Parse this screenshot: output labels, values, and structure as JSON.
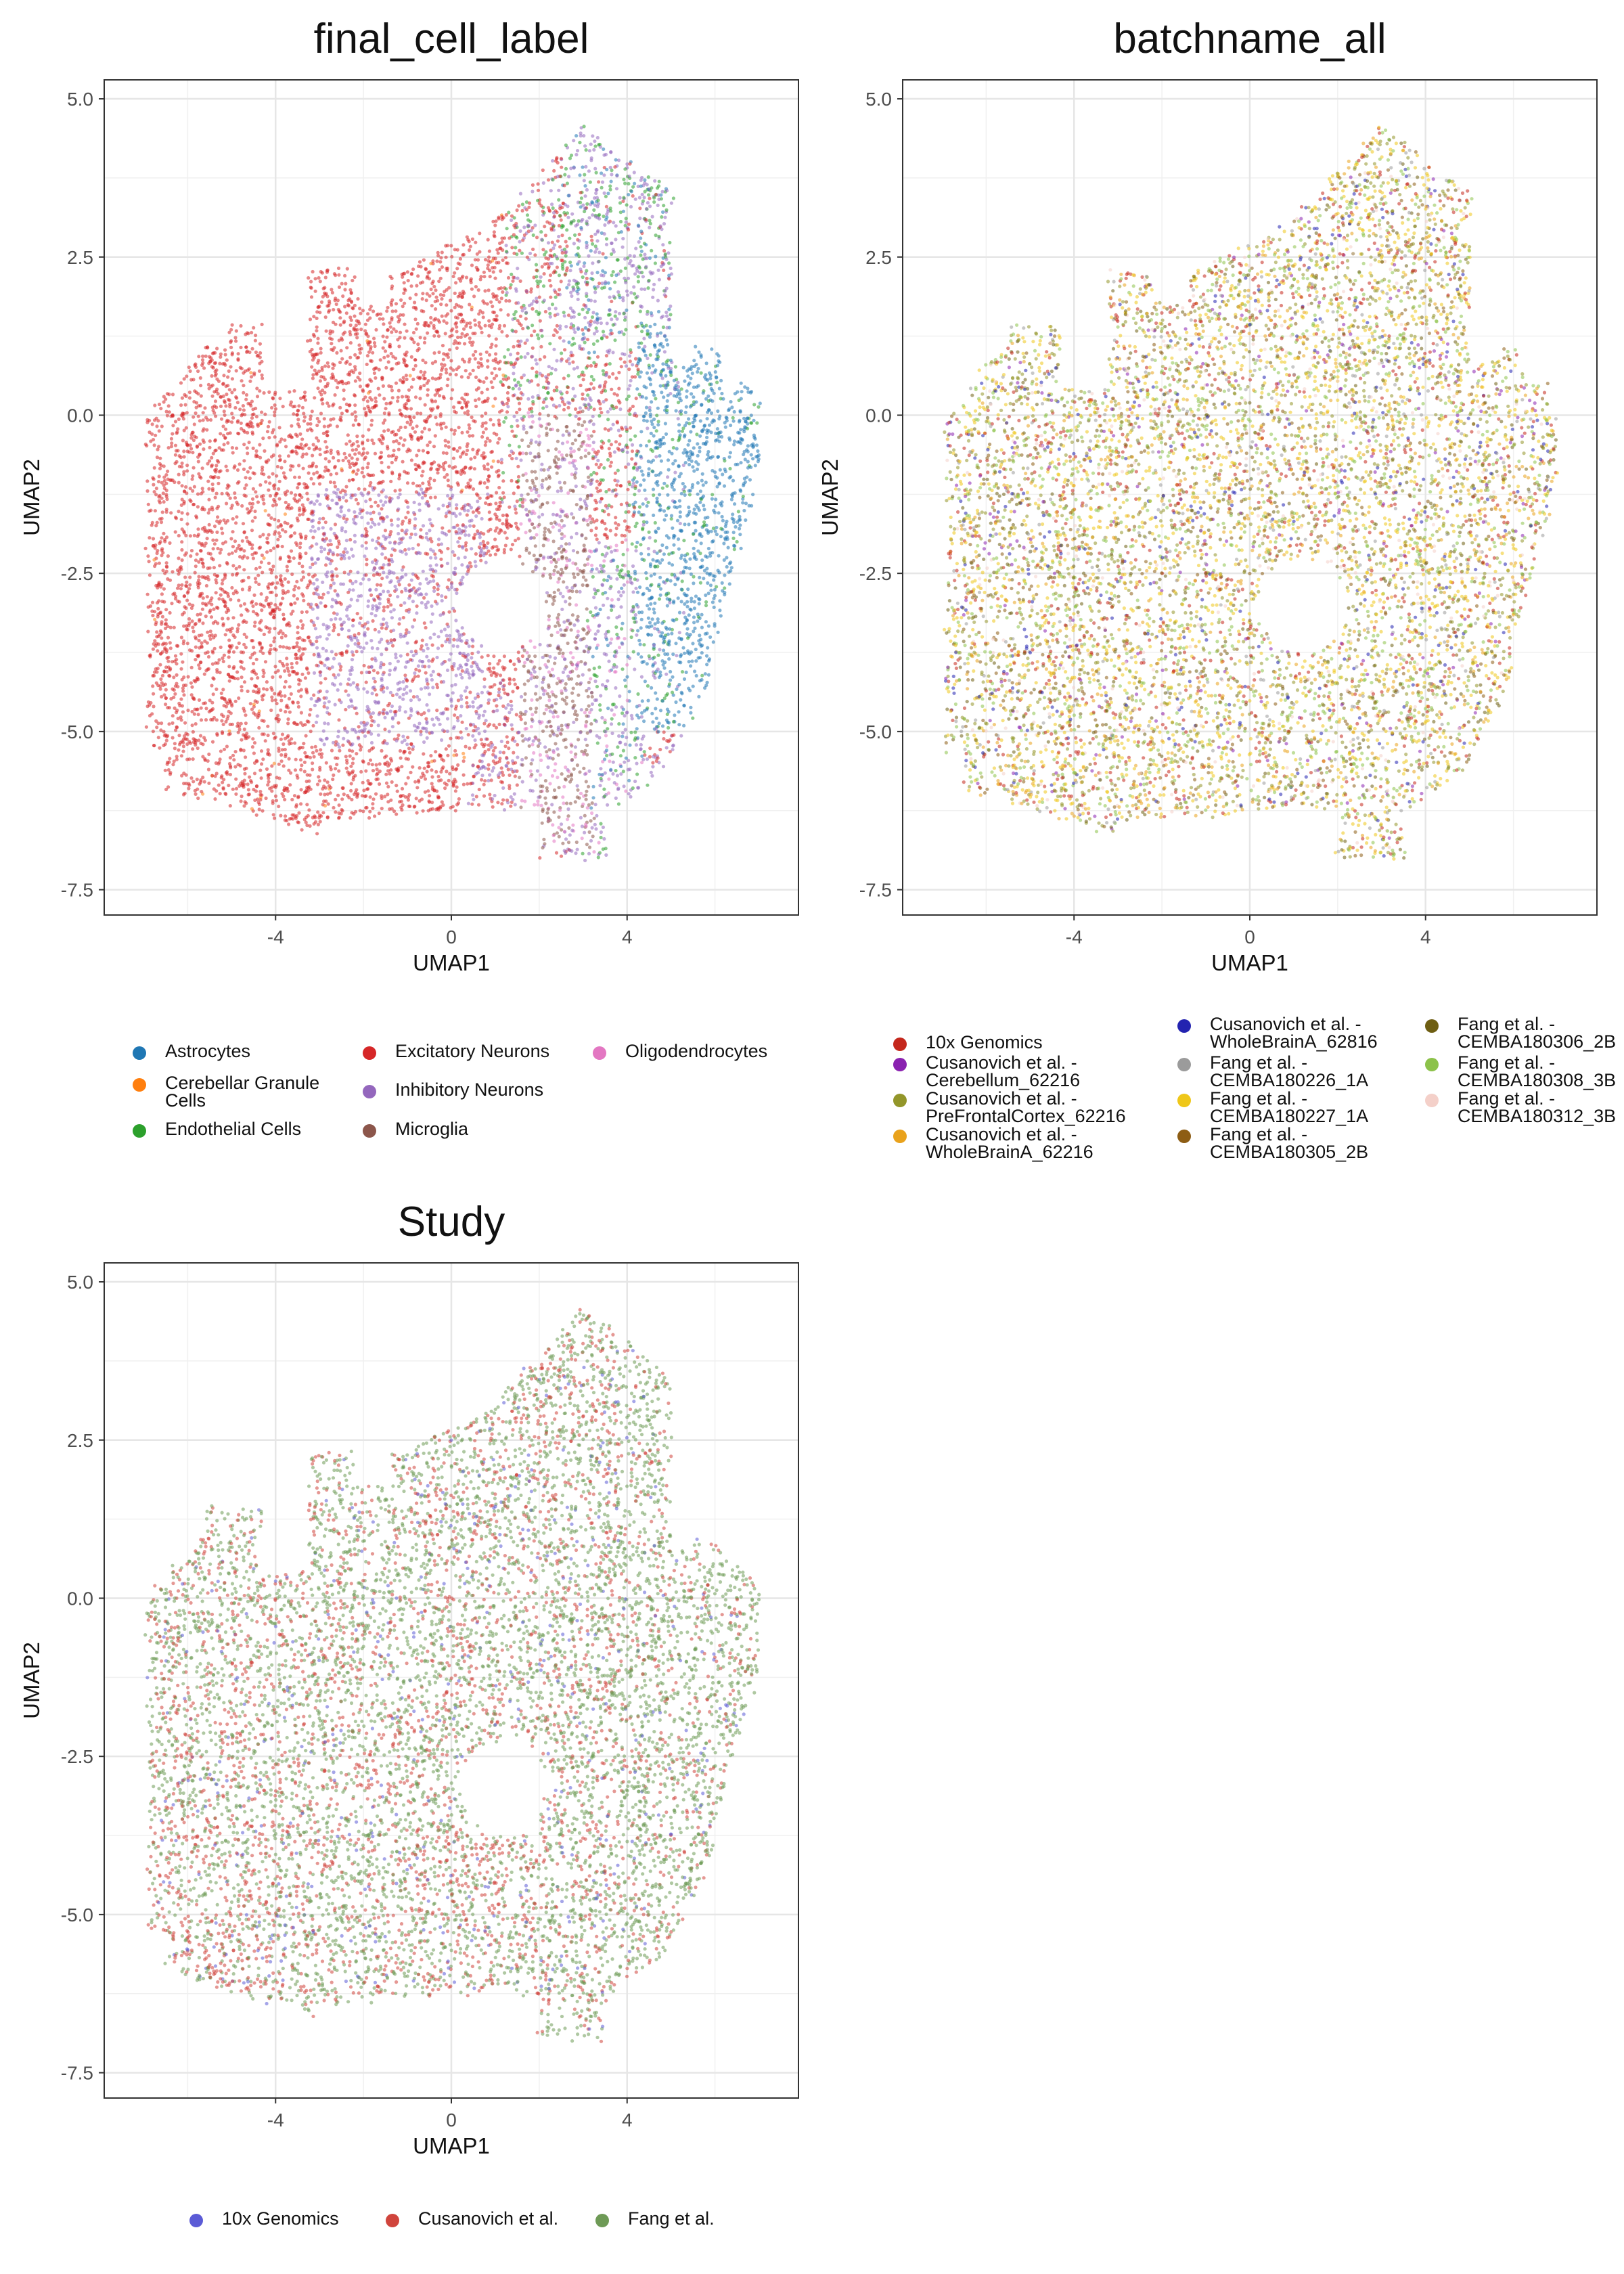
{
  "chart_data": [
    {
      "type": "scatter",
      "title": "final_cell_label",
      "xlabel": "UMAP1",
      "ylabel": "UMAP2",
      "xlim": [
        -7.9,
        7.9
      ],
      "ylim": [
        -7.9,
        5.3
      ],
      "xticks": [
        "-4",
        "0",
        "4"
      ],
      "yticks": [
        "5.0",
        "2.5",
        "0.0",
        "-2.5",
        "-5.0",
        "-7.5"
      ],
      "grid": true,
      "legend": "bottom",
      "legend_columns": 3,
      "series": [
        {
          "name": "Astrocytes",
          "color": "#1f77b4"
        },
        {
          "name": "Cerebellar Granule Cells",
          "color": "#ff7f0e"
        },
        {
          "name": "Endothelial Cells",
          "color": "#2ca02c"
        },
        {
          "name": "Excitatory Neurons",
          "color": "#d62728"
        },
        {
          "name": "Inhibitory Neurons",
          "color": "#9467bd"
        },
        {
          "name": "Microglia",
          "color": "#8c564b"
        },
        {
          "name": "Oligodendrocytes",
          "color": "#e377c2"
        }
      ]
    },
    {
      "type": "scatter",
      "title": "batchname_all",
      "xlabel": "UMAP1",
      "ylabel": "UMAP2",
      "xlim": [
        -7.9,
        7.9
      ],
      "ylim": [
        -7.9,
        5.3
      ],
      "xticks": [
        "-4",
        "0",
        "4"
      ],
      "yticks": [
        "5.0",
        "2.5",
        "0.0",
        "-2.5",
        "-5.0",
        "-7.5"
      ],
      "grid": true,
      "legend": "bottom",
      "legend_columns": 3,
      "series": [
        {
          "name": "10x Genomics",
          "color": "#c4271c"
        },
        {
          "name": "Cusanovich et al. -\nCerebellum_62216",
          "color": "#8a22b0"
        },
        {
          "name": "Cusanovich et al. -\nPreFrontalCortex_62216",
          "color": "#93962a"
        },
        {
          "name": "Cusanovich et al. -\nWholeBrainA_62216",
          "color": "#e9a21c"
        },
        {
          "name": "Cusanovich et al. -\nWholeBrainA_62816",
          "color": "#2323b0"
        },
        {
          "name": "Fang et al. -\nCEMBA180226_1A",
          "color": "#9b9b9b"
        },
        {
          "name": "Fang et al. -\nCEMBA180227_1A",
          "color": "#efc719"
        },
        {
          "name": "Fang et al. -\nCEMBA180305_2B",
          "color": "#8d5d14"
        },
        {
          "name": "Fang et al. -\nCEMBA180306_2B",
          "color": "#6e5e12"
        },
        {
          "name": "Fang et al. -\nCEMBA180308_3B",
          "color": "#8cc24a"
        },
        {
          "name": "Fang et al. -\nCEMBA180312_3B",
          "color": "#f4d0c9"
        }
      ]
    },
    {
      "type": "scatter",
      "title": "Study",
      "xlabel": "UMAP1",
      "ylabel": "UMAP2",
      "xlim": [
        -7.9,
        7.9
      ],
      "ylim": [
        -7.9,
        5.3
      ],
      "xticks": [
        "-4",
        "0",
        "4"
      ],
      "yticks": [
        "5.0",
        "2.5",
        "0.0",
        "-2.5",
        "-5.0",
        "-7.5"
      ],
      "grid": true,
      "legend": "bottom",
      "legend_columns": 3,
      "series": [
        {
          "name": "10x Genomics",
          "color": "#5b5bd6"
        },
        {
          "name": "Cusanovich et al.",
          "color": "#d0443c"
        },
        {
          "name": "Fang et al.",
          "color": "#6e9a56"
        }
      ]
    }
  ]
}
